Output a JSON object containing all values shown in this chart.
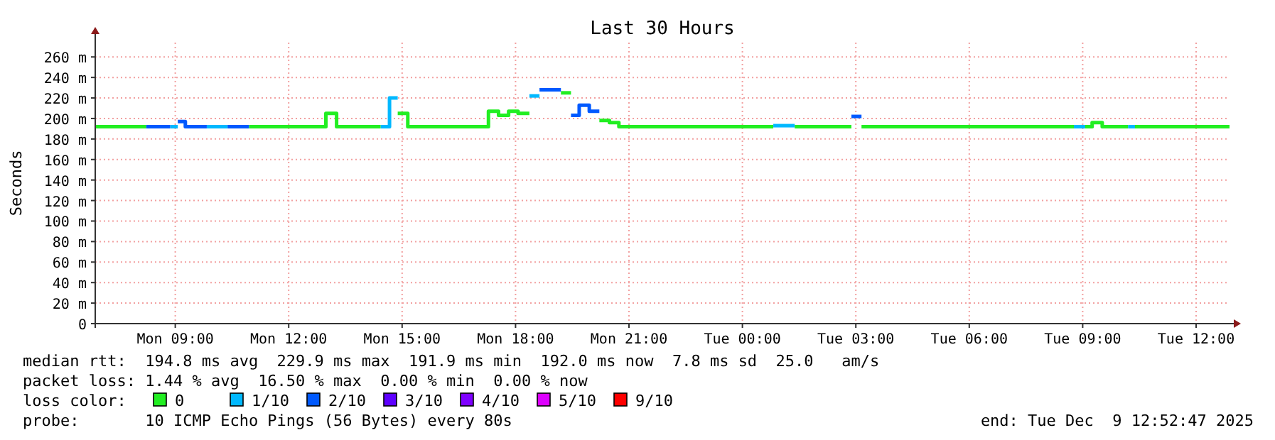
{
  "chart_data": {
    "type": "step",
    "title": "Last 30 Hours",
    "ylabel": "Seconds",
    "legend_title": "loss color:",
    "legend": "bottom",
    "grid": true,
    "series": [
      {
        "name": "0",
        "color": "#22ee22",
        "x": [
          "2025-12-08T06:53",
          "2025-12-08T08:14"
        ],
        "values": [
          192,
          192
        ]
      },
      {
        "name": "1/10",
        "color": "#00b8ff",
        "x": [
          "2025-12-08T08:52",
          "2025-12-08T09:04"
        ],
        "values": [
          192,
          192
        ]
      },
      {
        "name": "2/10",
        "color": "#0059ff",
        "x": [
          "2025-12-08T08:14",
          "2025-12-08T08:52"
        ],
        "values": [
          192,
          192
        ]
      },
      {
        "name": "3/10",
        "color": "#5e00ff"
      },
      {
        "name": "4/10",
        "color": "#7e00ff"
      },
      {
        "name": "5/10",
        "color": "#dd00ff"
      },
      {
        "name": "9/10",
        "color": "#ff0000"
      },
      {
        "color": "#22ee22",
        "x": [
          "2025-12-08T10:57",
          "2025-12-08T12:59",
          "2025-12-08T13:16",
          "2025-12-08T14:26"
        ],
        "values": [
          192,
          205,
          192,
          192
        ]
      },
      {
        "color": "#22ee22",
        "x": [
          "2025-12-08T14:53",
          "2025-12-08T15:09",
          "2025-12-08T17:17",
          "2025-12-08T17:33",
          "2025-12-08T17:49",
          "2025-12-08T18:04",
          "2025-12-08T18:22"
        ],
        "values": [
          205,
          192,
          207,
          203,
          207,
          205,
          205
        ]
      },
      {
        "color": "#22ee22",
        "x": [
          "2025-12-08T19:12",
          "2025-12-08T19:28"
        ],
        "values": [
          225,
          225
        ]
      },
      {
        "color": "#22ee22",
        "x": [
          "2025-12-08T20:13",
          "2025-12-08T20:29",
          "2025-12-08T20:44",
          "2025-12-09T00:49"
        ],
        "values": [
          198,
          196,
          192,
          192
        ]
      },
      {
        "color": "#22ee22",
        "x": [
          "2025-12-09T01:23",
          "2025-12-09T02:53"
        ],
        "values": [
          192,
          192
        ]
      },
      {
        "color": "#22ee22",
        "x": [
          "2025-12-09T03:09",
          "2025-12-09T08:46"
        ],
        "values": [
          192,
          192
        ]
      },
      {
        "color": "#22ee22",
        "x": [
          "2025-12-09T09:04",
          "2025-12-09T09:15",
          "2025-12-09T09:31",
          "2025-12-09T10:12"
        ],
        "values": [
          192,
          196,
          192,
          192
        ]
      },
      {
        "color": "#22ee22",
        "x": [
          "2025-12-09T10:23",
          "2025-12-09T12:53"
        ],
        "values": [
          192,
          192
        ]
      },
      {
        "color": "#00b8ff",
        "x": [
          "2025-12-08T09:50",
          "2025-12-08T10:23"
        ],
        "values": [
          192,
          192
        ]
      },
      {
        "color": "#00b8ff",
        "x": [
          "2025-12-08T14:26",
          "2025-12-08T14:40",
          "2025-12-08T14:53"
        ],
        "values": [
          192,
          220,
          220
        ]
      },
      {
        "color": "#00b8ff",
        "x": [
          "2025-12-08T18:22",
          "2025-12-08T18:38"
        ],
        "values": [
          222,
          222
        ]
      },
      {
        "color": "#00b8ff",
        "x": [
          "2025-12-09T00:49",
          "2025-12-09T01:23"
        ],
        "values": [
          193,
          193
        ]
      },
      {
        "color": "#00b8ff",
        "x": [
          "2025-12-09T08:46",
          "2025-12-09T09:04"
        ],
        "values": [
          192,
          192
        ]
      },
      {
        "color": "#00b8ff",
        "x": [
          "2025-12-09T10:12",
          "2025-12-09T10:23"
        ],
        "values": [
          192,
          192
        ]
      },
      {
        "color": "#0059ff",
        "x": [
          "2025-12-08T09:04",
          "2025-12-08T09:16",
          "2025-12-08T09:50"
        ],
        "values": [
          197,
          192,
          192
        ]
      },
      {
        "color": "#0059ff",
        "x": [
          "2025-12-08T10:23",
          "2025-12-08T10:57"
        ],
        "values": [
          192,
          192
        ]
      },
      {
        "color": "#0059ff",
        "x": [
          "2025-12-08T18:38",
          "2025-12-08T19:12"
        ],
        "values": [
          228,
          228
        ]
      },
      {
        "color": "#0059ff",
        "x": [
          "2025-12-08T19:28",
          "2025-12-08T19:41",
          "2025-12-08T19:57",
          "2025-12-08T20:13"
        ],
        "values": [
          203,
          213,
          207,
          207
        ]
      },
      {
        "color": "#0059ff",
        "x": [
          "2025-12-09T02:53",
          "2025-12-09T03:09"
        ],
        "values": [
          202,
          202
        ]
      }
    ],
    "xlim": [
      "2025-12-08T06:53",
      "2025-12-09T12:53"
    ],
    "xticks": [
      {
        "value": "2025-12-08T09:00",
        "label": "Mon 09:00"
      },
      {
        "value": "2025-12-08T12:00",
        "label": "Mon 12:00"
      },
      {
        "value": "2025-12-08T15:00",
        "label": "Mon 15:00"
      },
      {
        "value": "2025-12-08T18:00",
        "label": "Mon 18:00"
      },
      {
        "value": "2025-12-08T21:00",
        "label": "Mon 21:00"
      },
      {
        "value": "2025-12-09T00:00",
        "label": "Tue 00:00"
      },
      {
        "value": "2025-12-09T03:00",
        "label": "Tue 03:00"
      },
      {
        "value": "2025-12-09T06:00",
        "label": "Tue 06:00"
      },
      {
        "value": "2025-12-09T09:00",
        "label": "Tue 09:00"
      },
      {
        "value": "2025-12-09T12:00",
        "label": "Tue 12:00"
      }
    ],
    "ylim": [
      0,
      274
    ],
    "yticks": [
      0,
      {
        "value": 20,
        "label": "20 m"
      },
      {
        "value": 40,
        "label": "40 m"
      },
      {
        "value": 60,
        "label": "60 m"
      },
      {
        "value": 80,
        "label": "80 m"
      },
      {
        "value": 100,
        "label": "100 m"
      },
      {
        "value": 120,
        "label": "120 m"
      },
      {
        "value": 140,
        "label": "140 m"
      },
      {
        "value": 160,
        "label": "160 m"
      },
      {
        "value": 180,
        "label": "180 m"
      },
      {
        "value": 200,
        "label": "200 m"
      },
      {
        "value": 220,
        "label": "220 m"
      },
      {
        "value": 240,
        "label": "240 m"
      },
      {
        "value": 260,
        "label": "260 m"
      }
    ],
    "annotations": [
      "median rtt:  194.8 ms avg  229.9 ms max  191.9 ms min  192.0 ms now  7.8 ms sd  25.0   am/s",
      "packet loss: 1.44 % avg  16.50 % max  0.00 % min  0.00 % now",
      "probe:       10 ICMP Echo Pings (56 Bytes) every 80s",
      "end: Tue Dec  9 12:52:47 2025"
    ]
  }
}
